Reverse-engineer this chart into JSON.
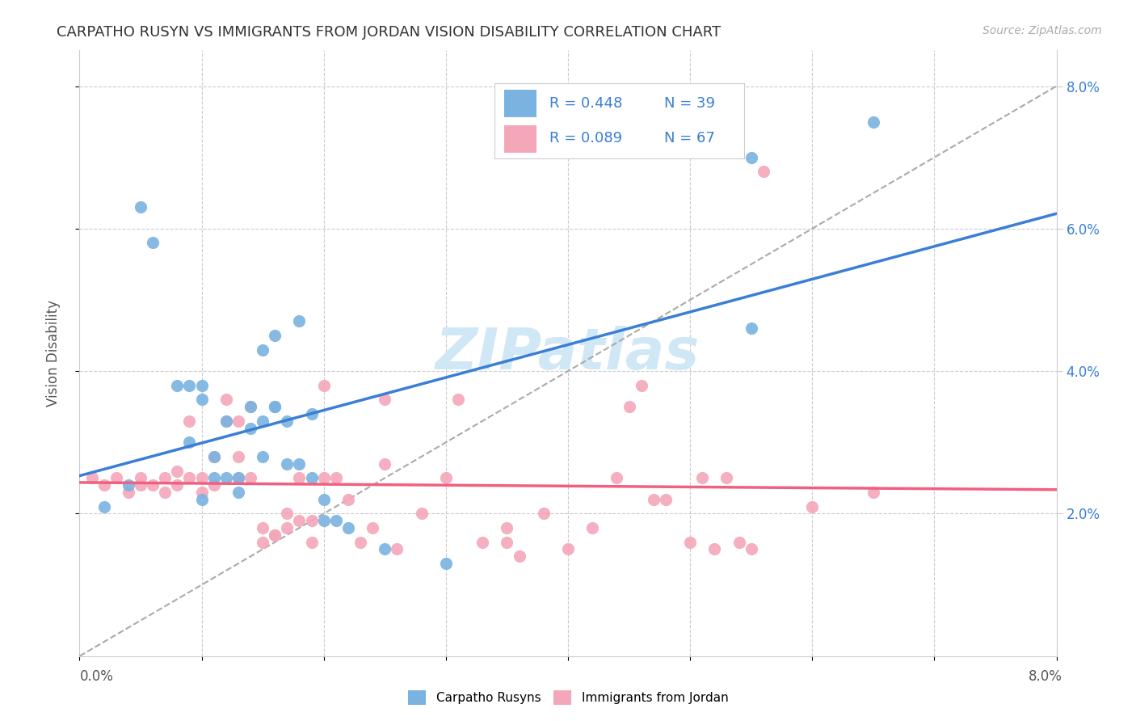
{
  "title": "CARPATHO RUSYN VS IMMIGRANTS FROM JORDAN VISION DISABILITY CORRELATION CHART",
  "source": "Source: ZipAtlas.com",
  "ylabel": "Vision Disability",
  "xlim": [
    0.0,
    0.08
  ],
  "ylim": [
    0.0,
    0.085
  ],
  "legend1_r": "R = 0.448",
  "legend1_n": "N = 39",
  "legend2_r": "R = 0.089",
  "legend2_n": "N = 67",
  "blue_color": "#7ab3e0",
  "pink_color": "#f4a7b9",
  "blue_line_color": "#3a7fd5",
  "pink_line_color": "#f06080",
  "dashed_line_color": "#aaaaaa",
  "legend_text_color": "#3a7fd5",
  "watermark_color": "#d0e8f5",
  "background_color": "#ffffff",
  "blue_scatter_x": [
    0.002,
    0.004,
    0.005,
    0.006,
    0.008,
    0.009,
    0.009,
    0.01,
    0.01,
    0.01,
    0.011,
    0.011,
    0.012,
    0.012,
    0.013,
    0.013,
    0.014,
    0.014,
    0.015,
    0.015,
    0.015,
    0.016,
    0.016,
    0.016,
    0.017,
    0.017,
    0.018,
    0.018,
    0.019,
    0.019,
    0.02,
    0.02,
    0.021,
    0.022,
    0.025,
    0.03,
    0.055,
    0.055,
    0.065
  ],
  "blue_scatter_y": [
    0.021,
    0.024,
    0.063,
    0.058,
    0.038,
    0.03,
    0.038,
    0.022,
    0.036,
    0.038,
    0.025,
    0.028,
    0.025,
    0.033,
    0.023,
    0.025,
    0.032,
    0.035,
    0.028,
    0.033,
    0.043,
    0.035,
    0.035,
    0.045,
    0.027,
    0.033,
    0.027,
    0.047,
    0.025,
    0.034,
    0.022,
    0.019,
    0.019,
    0.018,
    0.015,
    0.013,
    0.07,
    0.046,
    0.075
  ],
  "pink_scatter_x": [
    0.001,
    0.002,
    0.003,
    0.004,
    0.005,
    0.005,
    0.006,
    0.007,
    0.007,
    0.008,
    0.008,
    0.009,
    0.009,
    0.01,
    0.01,
    0.011,
    0.011,
    0.012,
    0.012,
    0.013,
    0.013,
    0.013,
    0.014,
    0.014,
    0.015,
    0.015,
    0.016,
    0.016,
    0.017,
    0.017,
    0.018,
    0.018,
    0.019,
    0.019,
    0.02,
    0.02,
    0.021,
    0.022,
    0.023,
    0.024,
    0.025,
    0.025,
    0.026,
    0.028,
    0.03,
    0.031,
    0.033,
    0.035,
    0.035,
    0.036,
    0.038,
    0.04,
    0.042,
    0.044,
    0.045,
    0.046,
    0.047,
    0.048,
    0.05,
    0.051,
    0.052,
    0.053,
    0.054,
    0.055,
    0.056,
    0.06,
    0.065
  ],
  "pink_scatter_y": [
    0.025,
    0.024,
    0.025,
    0.023,
    0.024,
    0.025,
    0.024,
    0.023,
    0.025,
    0.024,
    0.026,
    0.025,
    0.033,
    0.023,
    0.025,
    0.024,
    0.028,
    0.033,
    0.036,
    0.025,
    0.028,
    0.033,
    0.025,
    0.035,
    0.016,
    0.018,
    0.017,
    0.017,
    0.018,
    0.02,
    0.019,
    0.025,
    0.016,
    0.019,
    0.025,
    0.038,
    0.025,
    0.022,
    0.016,
    0.018,
    0.027,
    0.036,
    0.015,
    0.02,
    0.025,
    0.036,
    0.016,
    0.016,
    0.018,
    0.014,
    0.02,
    0.015,
    0.018,
    0.025,
    0.035,
    0.038,
    0.022,
    0.022,
    0.016,
    0.025,
    0.015,
    0.025,
    0.016,
    0.015,
    0.068,
    0.021,
    0.023
  ]
}
